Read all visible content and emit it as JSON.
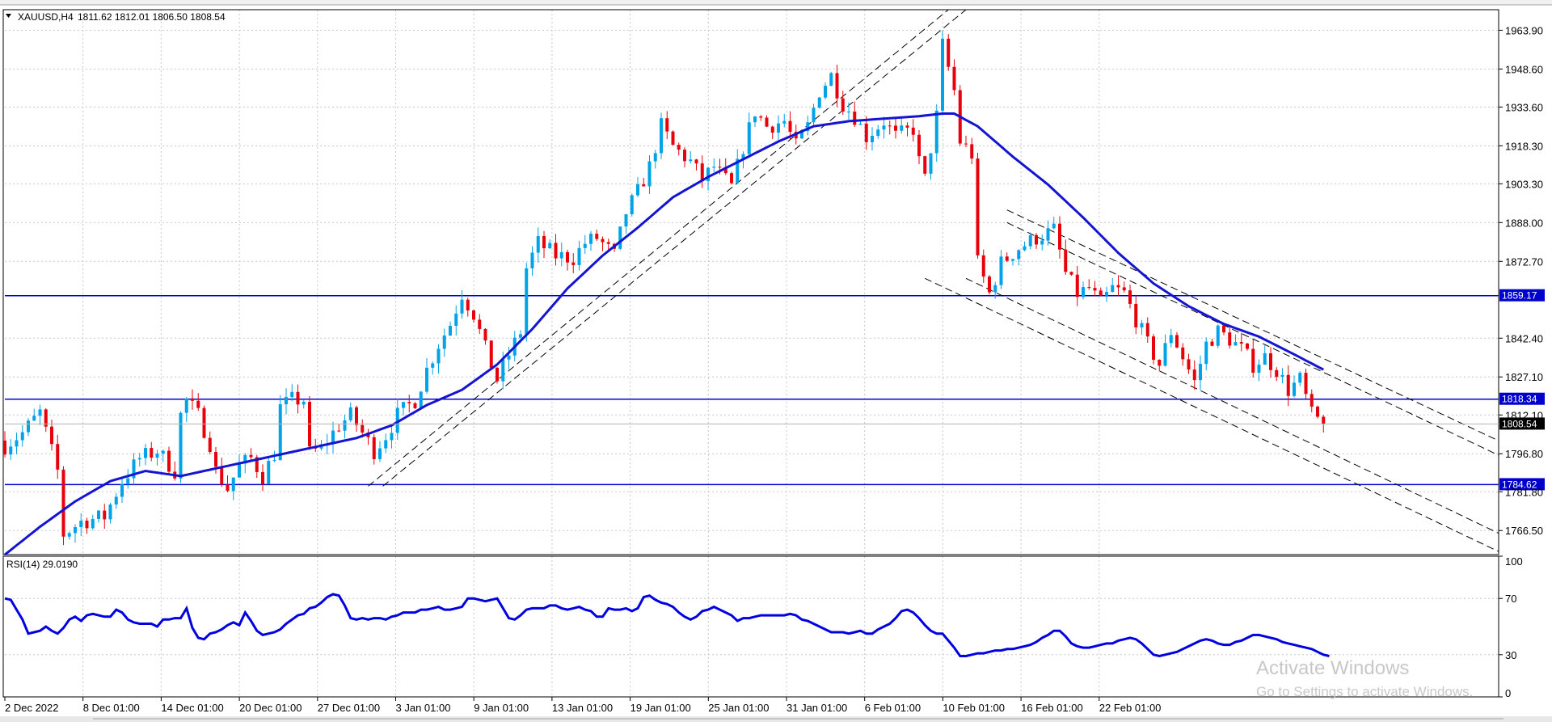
{
  "header": {
    "symbol": "XAUUSD,H4",
    "ohlc": "1811.62 1812.01 1806.50 1808.54",
    "menu_arrow": "triangle-down-icon"
  },
  "watermark": {
    "title": "Activate Windows",
    "subtitle": "Go to Settings to activate Windows."
  },
  "colors": {
    "bull": "#00a2e8",
    "bear": "#e8000a",
    "ma": "#1414d2",
    "level": "#0000cc",
    "grid": "#c8c8c8",
    "rsi": "#0000e0"
  },
  "chart_data": [
    {
      "type": "candlestick",
      "title": "XAUUSD,H4",
      "ylim": [
        1757,
        1972
      ],
      "y_ticks": [
        "1963.90",
        "1948.60",
        "1933.60",
        "1918.30",
        "1903.30",
        "1888.00",
        "1872.70",
        "1842.40",
        "1827.10",
        "1812.10",
        "1796.80",
        "1781.80",
        "1766.50"
      ],
      "x_ticks": [
        "2 Dec 2022",
        "8 Dec 01:00",
        "14 Dec 01:00",
        "20 Dec 01:00",
        "27 Dec 01:00",
        "3 Jan 01:00",
        "9 Jan 01:00",
        "13 Jan 01:00",
        "19 Jan 01:00",
        "25 Jan 01:00",
        "31 Jan 01:00",
        "6 Feb 01:00",
        "10 Feb 01:00",
        "16 Feb 01:00",
        "22 Feb 01:00"
      ],
      "last_price": "1808.54",
      "close_path": [
        [
          0,
          1800
        ],
        [
          3,
          1805
        ],
        [
          6,
          1813
        ],
        [
          9,
          1790
        ],
        [
          10,
          1765
        ],
        [
          13,
          1770
        ],
        [
          17,
          1772
        ],
        [
          20,
          1786
        ],
        [
          23,
          1795
        ],
        [
          26,
          1798
        ],
        [
          29,
          1790
        ],
        [
          30,
          1812
        ],
        [
          31,
          1818
        ],
        [
          33,
          1812
        ],
        [
          35,
          1801
        ],
        [
          36,
          1790
        ],
        [
          38,
          1783
        ],
        [
          40,
          1792
        ],
        [
          42,
          1795
        ],
        [
          44,
          1788
        ],
        [
          46,
          1797
        ],
        [
          47,
          1815
        ],
        [
          49,
          1818
        ],
        [
          51,
          1818
        ],
        [
          52,
          1797
        ],
        [
          54,
          1799
        ],
        [
          57,
          1808
        ],
        [
          59,
          1812
        ],
        [
          61,
          1805
        ],
        [
          63,
          1798
        ],
        [
          65,
          1804
        ],
        [
          67,
          1812
        ],
        [
          70,
          1818
        ],
        [
          72,
          1830
        ],
        [
          74,
          1840
        ],
        [
          76,
          1848
        ],
        [
          78,
          1860
        ],
        [
          80,
          1852
        ],
        [
          82,
          1838
        ],
        [
          84,
          1826
        ],
        [
          86,
          1836
        ],
        [
          88,
          1845
        ],
        [
          89,
          1870
        ],
        [
          91,
          1880
        ],
        [
          94,
          1875
        ],
        [
          97,
          1874
        ],
        [
          99,
          1880
        ],
        [
          101,
          1882
        ],
        [
          104,
          1875
        ],
        [
          106,
          1892
        ],
        [
          108,
          1900
        ],
        [
          110,
          1910
        ],
        [
          112,
          1926
        ],
        [
          114,
          1918
        ],
        [
          117,
          1912
        ],
        [
          119,
          1905
        ],
        [
          121,
          1910
        ],
        [
          124,
          1902
        ],
        [
          126,
          1918
        ],
        [
          128,
          1932
        ],
        [
          130,
          1926
        ],
        [
          133,
          1928
        ],
        [
          135,
          1918
        ],
        [
          137,
          1926
        ],
        [
          139,
          1940
        ],
        [
          141,
          1946
        ],
        [
          143,
          1935
        ],
        [
          145,
          1930
        ],
        [
          147,
          1922
        ],
        [
          150,
          1928
        ],
        [
          152,
          1922
        ],
        [
          155,
          1925
        ],
        [
          156,
          1912
        ],
        [
          157,
          1905
        ],
        [
          159,
          1930
        ],
        [
          160,
          1958
        ],
        [
          162,
          1940
        ],
        [
          163,
          1920
        ],
        [
          165,
          1915
        ],
        [
          166,
          1872
        ],
        [
          168,
          1860
        ],
        [
          170,
          1872
        ],
        [
          173,
          1878
        ],
        [
          176,
          1882
        ],
        [
          179,
          1885
        ],
        [
          181,
          1868
        ],
        [
          183,
          1860
        ],
        [
          185,
          1862
        ],
        [
          187,
          1856
        ],
        [
          189,
          1862
        ],
        [
          191,
          1860
        ],
        [
          193,
          1850
        ],
        [
          195,
          1840
        ],
        [
          197,
          1832
        ],
        [
          199,
          1845
        ],
        [
          201,
          1835
        ],
        [
          203,
          1825
        ],
        [
          205,
          1840
        ],
        [
          207,
          1845
        ],
        [
          209,
          1842
        ],
        [
          211,
          1838
        ],
        [
          213,
          1832
        ],
        [
          215,
          1835
        ],
        [
          217,
          1830
        ],
        [
          219,
          1822
        ],
        [
          221,
          1826
        ],
        [
          223,
          1812
        ],
        [
          225,
          1808.54
        ]
      ],
      "ma_path": [
        [
          0,
          1757
        ],
        [
          6,
          1768
        ],
        [
          12,
          1778
        ],
        [
          18,
          1786
        ],
        [
          24,
          1790
        ],
        [
          30,
          1788
        ],
        [
          36,
          1791
        ],
        [
          42,
          1794
        ],
        [
          48,
          1797
        ],
        [
          54,
          1800
        ],
        [
          60,
          1803
        ],
        [
          66,
          1808
        ],
        [
          72,
          1816
        ],
        [
          78,
          1822
        ],
        [
          84,
          1832
        ],
        [
          90,
          1846
        ],
        [
          96,
          1862
        ],
        [
          102,
          1875
        ],
        [
          108,
          1886
        ],
        [
          114,
          1898
        ],
        [
          120,
          1906
        ],
        [
          126,
          1913
        ],
        [
          132,
          1920
        ],
        [
          138,
          1926
        ],
        [
          144,
          1928
        ],
        [
          150,
          1929
        ],
        [
          156,
          1930
        ],
        [
          160,
          1931
        ],
        [
          162,
          1931
        ],
        [
          166,
          1926
        ],
        [
          172,
          1914
        ],
        [
          178,
          1903
        ],
        [
          184,
          1890
        ],
        [
          190,
          1876
        ],
        [
          196,
          1864
        ],
        [
          202,
          1855
        ],
        [
          208,
          1848
        ],
        [
          214,
          1843
        ],
        [
          220,
          1836
        ],
        [
          225,
          1830
        ]
      ],
      "horizontal_levels": [
        {
          "label": "1859.17",
          "value": 1859.17
        },
        {
          "label": "1818.34",
          "value": 1818.34
        },
        {
          "label": "1784.62",
          "value": 1784.62
        }
      ],
      "trend_lines": [
        {
          "style": "dashed",
          "from": [
            64.5,
            1784
          ],
          "to": [
            164,
            1972
          ]
        },
        {
          "style": "dashed",
          "from": [
            62,
            1784
          ],
          "to": [
            161,
            1972
          ]
        },
        {
          "style": "dashed",
          "from": [
            171,
            1893
          ],
          "to": [
            293.5,
            1760
          ]
        },
        {
          "style": "dashed",
          "from": [
            171,
            1888
          ],
          "to": [
            293.5,
            1754
          ]
        },
        {
          "style": "dashed",
          "from": [
            157,
            1866
          ],
          "to": [
            256,
            1757
          ]
        },
        {
          "style": "dashed",
          "from": [
            164,
            1866
          ],
          "to": [
            262.5,
            1757
          ]
        }
      ]
    },
    {
      "type": "line",
      "title": "RSI(14) 29.0190",
      "ylim": [
        0,
        100
      ],
      "y_ticks": [
        "100",
        "70",
        "30",
        "0"
      ],
      "series": [
        {
          "values": [
            70,
            69,
            62,
            55,
            45,
            46,
            47,
            50,
            47,
            45,
            49,
            55,
            57,
            54,
            58,
            59,
            58,
            57,
            57,
            62,
            60,
            55,
            53,
            52,
            52,
            52,
            50,
            55,
            55,
            56,
            56,
            63,
            49,
            42,
            41,
            45,
            46,
            48,
            51,
            53,
            51,
            60,
            54,
            47,
            44,
            45,
            46,
            48,
            52,
            55,
            58,
            59,
            63,
            64,
            67,
            71,
            73,
            72,
            65,
            56,
            55,
            56,
            55,
            56,
            56,
            55,
            57,
            58,
            60,
            60,
            60,
            62,
            62,
            63,
            64,
            62,
            62,
            63,
            64,
            70,
            70,
            69,
            68,
            69,
            70,
            63,
            56,
            55,
            58,
            62,
            63,
            63,
            63,
            65,
            65,
            63,
            62,
            63,
            64,
            62,
            61,
            57,
            57,
            63,
            62,
            62,
            63,
            61,
            63,
            71,
            72,
            69,
            67,
            66,
            64,
            60,
            57,
            55,
            57,
            61,
            62,
            64,
            62,
            60,
            58,
            54,
            56,
            56,
            57,
            58,
            58,
            58,
            58,
            58,
            59,
            58,
            55,
            54,
            52,
            50,
            48,
            46,
            46,
            46,
            45,
            46,
            47,
            45,
            45,
            48,
            50,
            52,
            56,
            61,
            62,
            60,
            56,
            51,
            47,
            45,
            45,
            40,
            35,
            29,
            29,
            30,
            31,
            31,
            32,
            33,
            33,
            34,
            34,
            35,
            36,
            37,
            39,
            42,
            44,
            47,
            47,
            43,
            38,
            36,
            35,
            35,
            36,
            37,
            38,
            38,
            40,
            41,
            42,
            41,
            38,
            34,
            30,
            29,
            30,
            31,
            32,
            34,
            36,
            38,
            40,
            41,
            40,
            38,
            37,
            37,
            39,
            40,
            42,
            44,
            44,
            43,
            42,
            41,
            39,
            38,
            37,
            36,
            35,
            34,
            32,
            30,
            29
          ]
        }
      ]
    }
  ]
}
